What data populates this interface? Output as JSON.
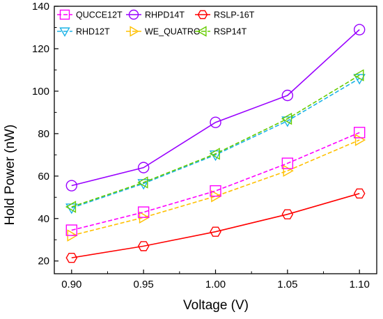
{
  "chart_data": {
    "type": "line",
    "xlabel": "Voltage (V)",
    "ylabel": "Hold Power (nW)",
    "x": [
      0.9,
      0.95,
      1.0,
      1.05,
      1.1
    ],
    "x_tick_labels": [
      "0.90",
      "0.95",
      "1.00",
      "1.05",
      "1.10"
    ],
    "xlim": [
      0.888,
      1.112
    ],
    "ylim": [
      14,
      140
    ],
    "y_ticks": [
      20,
      40,
      60,
      80,
      100,
      120,
      140
    ],
    "grid": false,
    "legend_position": "top, three columns",
    "series": [
      {
        "name": "QUCCE12T",
        "color": "#ff00ff",
        "marker": "square",
        "dashed": true,
        "values": [
          34.5,
          43,
          53,
          66,
          80.5
        ]
      },
      {
        "name": "RHPD14T",
        "color": "#9900ff",
        "marker": "circle",
        "dashed": false,
        "values": [
          55.5,
          64,
          85.3,
          98,
          129
        ]
      },
      {
        "name": "RSLP-16T",
        "color": "#ff0000",
        "marker": "hexagon",
        "dashed": false,
        "values": [
          21.5,
          27,
          33.8,
          42,
          51.8
        ]
      },
      {
        "name": "RHD12T",
        "color": "#1ab2e6",
        "marker": "triangle-down",
        "dashed": true,
        "values": [
          45,
          56.5,
          70,
          86,
          106
        ]
      },
      {
        "name": "WE_QUATRO",
        "color": "#ffc000",
        "marker": "triangle-right",
        "dashed": true,
        "values": [
          32,
          40.5,
          50.5,
          62.5,
          77
        ]
      },
      {
        "name": "RSP14T",
        "color": "#66cc00",
        "marker": "triangle-left",
        "dashed": true,
        "values": [
          45.5,
          57,
          70.5,
          87,
          107.5
        ]
      }
    ]
  }
}
